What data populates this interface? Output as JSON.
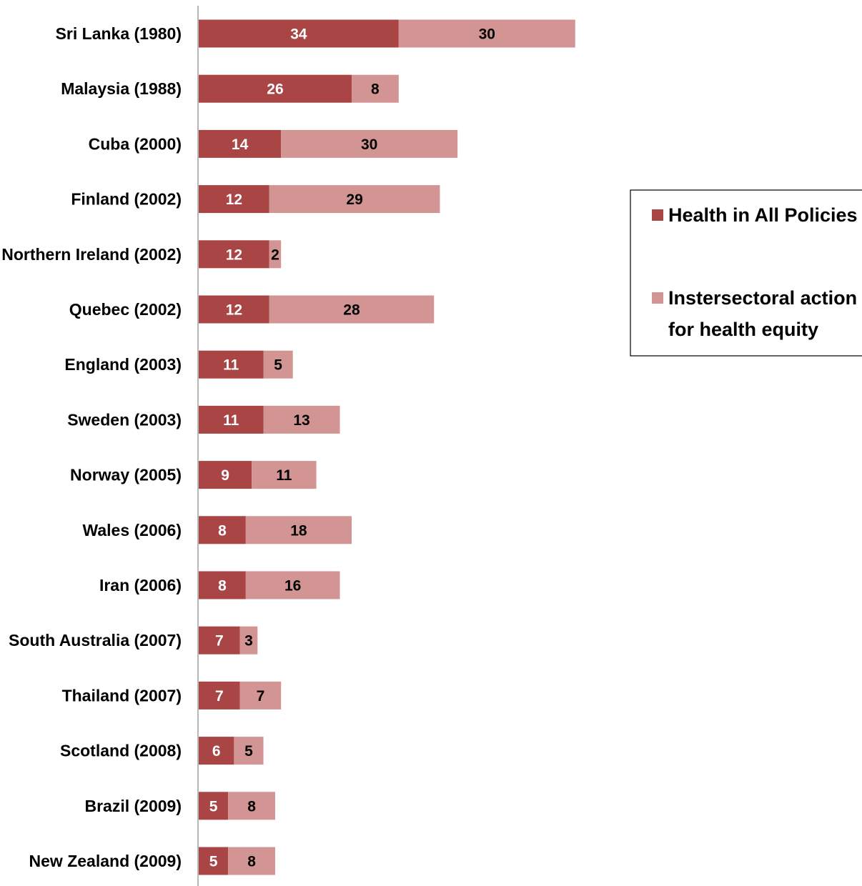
{
  "chart_data": {
    "type": "bar",
    "orientation": "horizontal",
    "stacked": true,
    "categories": [
      "Sri Lanka (1980)",
      "Malaysia (1988)",
      "Cuba (2000)",
      "Finland (2002)",
      "Northern Ireland (2002)",
      "Quebec (2002)",
      "England (2003)",
      "Sweden (2003)",
      "Norway (2005)",
      "Wales (2006)",
      "Iran (2006)",
      "South Australia (2007)",
      "Thailand (2007)",
      "Scotland (2008)",
      "Brazil (2009)",
      "New Zealand (2009)"
    ],
    "series": [
      {
        "name": "Health in All Policies",
        "color": "#a94544",
        "label_color": "#ffffff",
        "values": [
          34,
          26,
          14,
          12,
          12,
          12,
          11,
          11,
          9,
          8,
          8,
          7,
          7,
          6,
          5,
          5
        ]
      },
      {
        "name": "Instersectoral action for health equity",
        "color": "#d39594",
        "label_color": "#000000",
        "values": [
          30,
          8,
          30,
          29,
          2,
          28,
          5,
          13,
          11,
          18,
          16,
          3,
          7,
          5,
          8,
          8
        ]
      }
    ],
    "legend": {
      "position": "right",
      "items": [
        {
          "lines": [
            "Health in All Policies"
          ],
          "color": "#a94544"
        },
        {
          "lines": [
            "Instersectoral action",
            "for health equity"
          ],
          "color": "#d39594"
        }
      ]
    },
    "axis_color": "#a0a0a0",
    "grid": false
  }
}
